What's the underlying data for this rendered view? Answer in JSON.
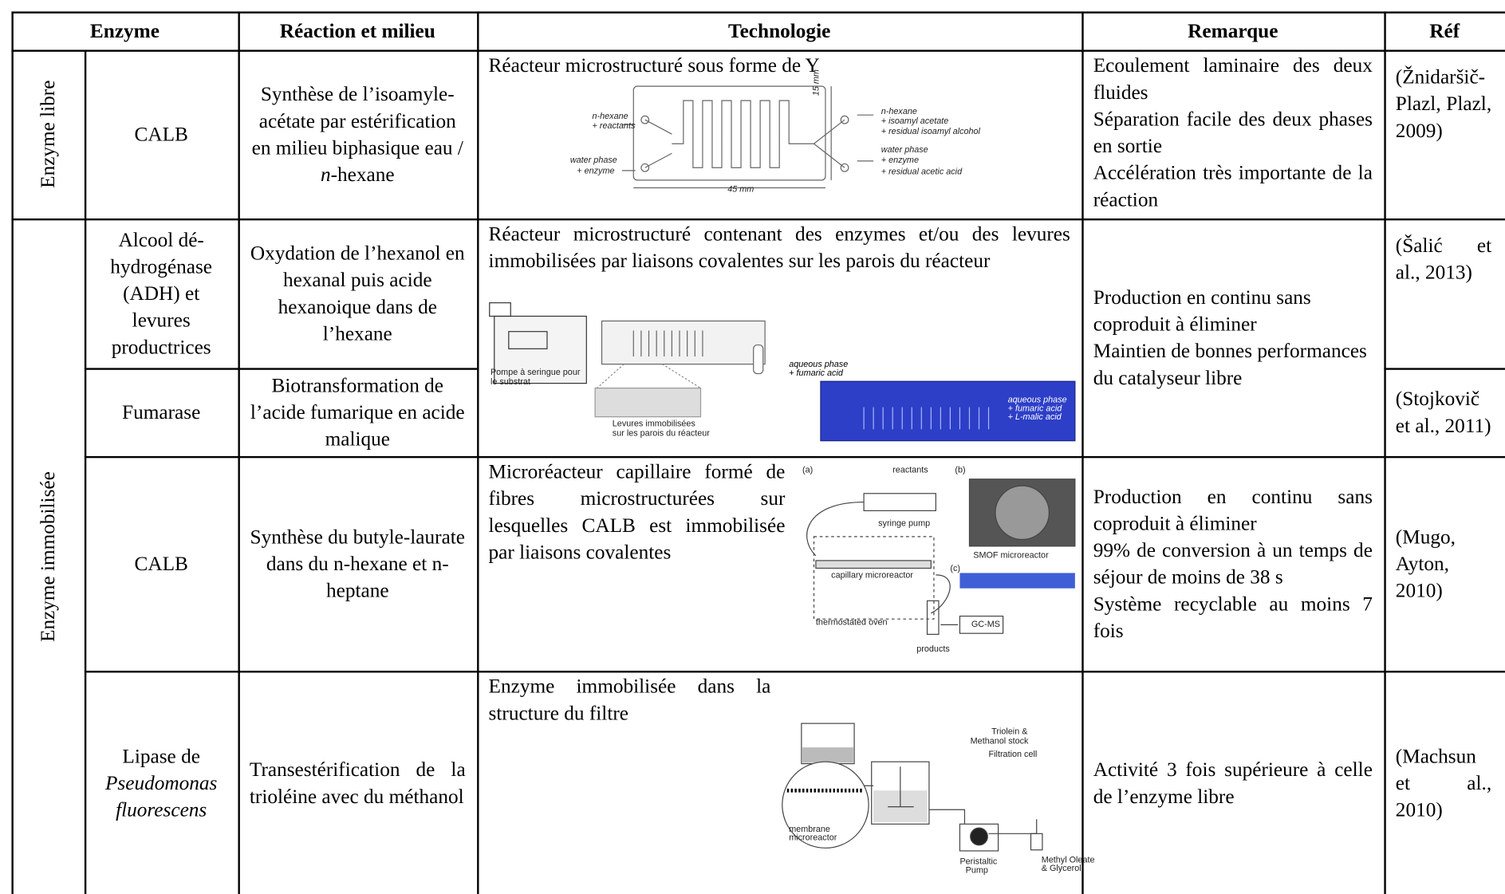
{
  "table": {
    "headers": [
      "Enzyme",
      "Réaction et milieu",
      "Technologie",
      "Remarque",
      "Réf"
    ],
    "groups": [
      "Enzyme libre",
      "Enzyme immobilisée"
    ],
    "rows": [
      {
        "enzyme": [
          "CALB"
        ],
        "reaction": [
          "Synthèse de l’isoamyle-acétate par estérification en milieu biphasique eau / ",
          "n",
          "-hexane"
        ],
        "technology": "Réacteur microstructuré sous forme de Y",
        "remark": [
          "Ecoulement laminaire des deux fluides",
          "Séparation facile des deux phases en sortie",
          "Accélération très importante de la réaction"
        ],
        "ref": "(Žnidaršič-Plazl, Plazl, 2009)"
      },
      {
        "enzyme": [
          "Alcool dé-hydrogénase (ADH) et levures productrices"
        ],
        "reaction": [
          "Oxydation de l’hexanol en hexanal puis acide hexanoique dans de l’hexane"
        ],
        "technology": "Réacteur microstructuré contenant des enzymes et/ou des levures immobilisées par liaisons covalentes sur les parois du réacteur",
        "remark": [
          "Production en continu sans coproduit à éliminer",
          "Maintien de bonnes performances du catalyseur libre"
        ],
        "ref": "(Šalić et al., 2013)"
      },
      {
        "enzyme": [
          "Fumarase"
        ],
        "reaction": [
          "Biotransformation de l’acide fumarique en acide malique"
        ],
        "ref": "(Stojkovič et al., 2011)"
      },
      {
        "enzyme": [
          "CALB"
        ],
        "reaction": [
          "Synthèse du butyle-laurate dans du n-hexane et n-heptane"
        ],
        "technology": "Microréacteur capillaire formé de fibres microstructurées sur lesquelles CALB est immobilisée par liaisons covalentes",
        "remark": [
          "Production en continu sans coproduit à éliminer",
          "99% de conversion à un temps de séjour de moins de 38 s",
          "Système recyclable au moins 7 fois"
        ],
        "ref": "(Mugo, Ayton, 2010)"
      },
      {
        "enzyme": [
          "Lipase de ",
          "Pseudomonas fluorescens"
        ],
        "reaction": [
          "Transestérification de la trioléine avec du méthanol"
        ],
        "technology": "Enzyme immobilisée dans la structure du filtre",
        "remark": [
          "Activité 3 fois supérieure à celle de l’enzyme libre"
        ],
        "ref": "(Machsun et al., 2010)"
      }
    ]
  },
  "figures": [
    {
      "labels": [
        "n-hexane",
        "+ reactants",
        "water phase",
        "+ enzyme",
        "n-hexane",
        "+ isoamyl acetate",
        "+ residual isoamyl alcohol",
        "water phase",
        "+ enzyme",
        "+ residual acetic acid",
        "15 mm",
        "45 mm"
      ]
    },
    {
      "labels": [
        "Pompe à seringue pour",
        "le substrat",
        "Levures immobilisées",
        "sur les parois du réacteur",
        "aqueous phase",
        "+ fumaric acid",
        "aqueous phase",
        "+ fumaric acid",
        "+ L-malic acid"
      ]
    },
    {
      "labels": [
        "(a)",
        "reactants",
        "(b)",
        "syringe pump",
        "SMOF microreactor",
        "capillary microreactor",
        "(c)",
        "thermostated oven",
        "GC-MS",
        "products"
      ]
    },
    {
      "labels": [
        "Triolein &",
        "Methanol stock",
        "Filtration cell",
        "membrane",
        "microreactor",
        "Peristaltic",
        "Pump",
        "Methyl Oleate",
        "& Glycerol"
      ]
    }
  ]
}
